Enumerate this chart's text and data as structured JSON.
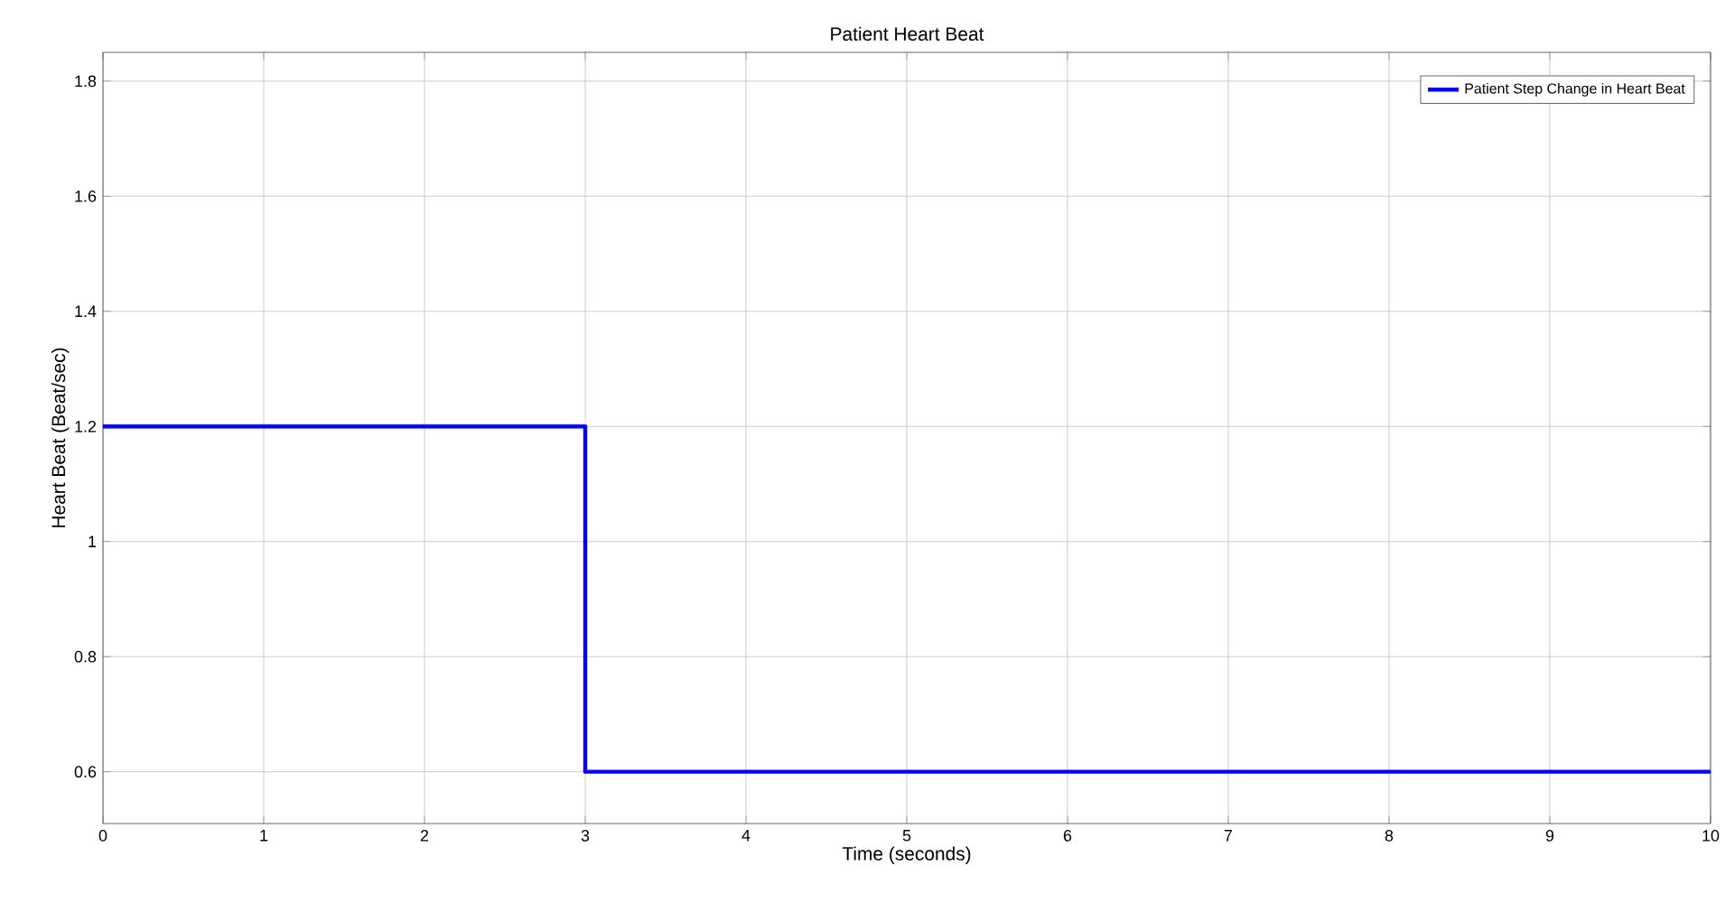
{
  "chart_data": {
    "type": "step",
    "title": "Patient Heart Beat",
    "xlabel": "Time (seconds)",
    "ylabel": "Heart Beat (Beat/sec)",
    "x": [
      0,
      3,
      10
    ],
    "series": [
      {
        "name": "Patient Step Change in Heart Beat",
        "color": "#0000ff",
        "values": [
          1.2,
          0.6,
          0.6
        ]
      }
    ],
    "xlim": [
      0,
      10
    ],
    "ylim": [
      0.51,
      1.85
    ],
    "xticks": [
      0,
      1,
      2,
      3,
      4,
      5,
      6,
      7,
      8,
      9,
      10
    ],
    "yticks": [
      0.6,
      0.8,
      1,
      1.2,
      1.4,
      1.6,
      1.8
    ],
    "grid": true,
    "legend": "top right",
    "marker": "none",
    "line_style": "solid"
  }
}
